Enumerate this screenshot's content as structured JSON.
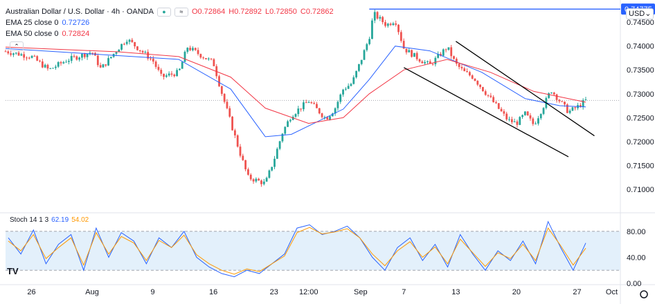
{
  "header": {
    "title": "Australian Dollar / U.S. Dollar · 4h · OANDA",
    "open": "O0.72864",
    "high": "H0.72892",
    "low": "L0.72850",
    "close": "C0.72862",
    "indicators": [
      {
        "label": "EMA 25 close 0",
        "value": "0.72726",
        "color": "#2962ff"
      },
      {
        "label": "EMA 50 close 0",
        "value": "0.72824",
        "color": "#f23645"
      }
    ]
  },
  "currency": "USD",
  "tv_logo": "TV",
  "stoch": {
    "label": "Stoch 14 1 3",
    "k": "62.19",
    "d": "54.02",
    "k_color": "#2962ff",
    "d_color": "#ff9800"
  },
  "colors": {
    "up": "#26a69a",
    "down": "#ef5350",
    "ema25": "#2962ff",
    "ema50": "#f23645",
    "band": "#e3f0fb"
  },
  "chart_data": [
    {
      "type": "candlestick",
      "title": "Australian Dollar / U.S. Dollar · 4h · OANDA",
      "ylim": [
        0.7055,
        0.7485
      ],
      "y_ticks": [
        "0.74500",
        "0.74000",
        "0.73500",
        "0.73000",
        "0.72500",
        "0.72000",
        "0.71500",
        "0.71000"
      ],
      "x_ticks": [
        "26",
        "Aug",
        "9",
        "16",
        "23",
        "12:00",
        "Sep",
        "7",
        "13",
        "20",
        "27",
        "Oct"
      ],
      "price_label": "0.74775",
      "horizontal_line": 0.74775,
      "current_price": 0.72862,
      "trendlines": [
        {
          "from": [
            "2021-09-13",
            0.741
          ],
          "to": [
            "2021-09-29",
            0.7212
          ]
        },
        {
          "from": [
            "2021-09-07",
            0.7355
          ],
          "to": [
            "2021-09-26",
            0.7168
          ]
        }
      ],
      "close_path": [
        [
          "2021-07-23",
          0.7389
        ],
        [
          "2021-07-26",
          0.7378
        ],
        [
          "2021-07-28",
          0.735
        ],
        [
          "2021-07-30",
          0.737
        ],
        [
          "2021-08-02",
          0.7388
        ],
        [
          "2021-08-03",
          0.7352
        ],
        [
          "2021-08-05",
          0.7395
        ],
        [
          "2021-08-06",
          0.7415
        ],
        [
          "2021-08-09",
          0.737
        ],
        [
          "2021-08-10",
          0.7335
        ],
        [
          "2021-08-12",
          0.7345
        ],
        [
          "2021-08-13",
          0.7398
        ],
        [
          "2021-08-16",
          0.7365
        ],
        [
          "2021-08-17",
          0.73
        ],
        [
          "2021-08-18",
          0.724
        ],
        [
          "2021-08-19",
          0.718
        ],
        [
          "2021-08-20",
          0.7125
        ],
        [
          "2021-08-22",
          0.7112
        ],
        [
          "2021-08-23",
          0.7162
        ],
        [
          "2021-08-24",
          0.722
        ],
        [
          "2021-08-25",
          0.7255
        ],
        [
          "2021-08-27",
          0.7285
        ],
        [
          "2021-08-29",
          0.7248
        ],
        [
          "2021-08-30",
          0.7268
        ],
        [
          "2021-08-31",
          0.731
        ],
        [
          "2021-09-01",
          0.7322
        ],
        [
          "2021-09-02",
          0.7368
        ],
        [
          "2021-09-03",
          0.7418
        ],
        [
          "2021-09-03T12:00",
          0.7468
        ],
        [
          "2021-09-05",
          0.7444
        ],
        [
          "2021-09-06",
          0.7455
        ],
        [
          "2021-09-07",
          0.7395
        ],
        [
          "2021-09-08",
          0.7382
        ],
        [
          "2021-09-09",
          0.737
        ],
        [
          "2021-09-10",
          0.736
        ],
        [
          "2021-09-12",
          0.7398
        ],
        [
          "2021-09-13",
          0.7362
        ],
        [
          "2021-09-14",
          0.7345
        ],
        [
          "2021-09-15",
          0.7335
        ],
        [
          "2021-09-16",
          0.7312
        ],
        [
          "2021-09-17",
          0.729
        ],
        [
          "2021-09-19",
          0.7245
        ],
        [
          "2021-09-20",
          0.7238
        ],
        [
          "2021-09-21",
          0.7258
        ],
        [
          "2021-09-22",
          0.7235
        ],
        [
          "2021-09-23",
          0.727
        ],
        [
          "2021-09-24",
          0.7308
        ],
        [
          "2021-09-25",
          0.7285
        ],
        [
          "2021-09-26",
          0.7262
        ],
        [
          "2021-09-27",
          0.7272
        ],
        [
          "2021-09-28",
          0.7286
        ]
      ],
      "ema25_path": [
        [
          "2021-07-23",
          0.7395
        ],
        [
          "2021-08-05",
          0.738
        ],
        [
          "2021-08-12",
          0.7372
        ],
        [
          "2021-08-18",
          0.731
        ],
        [
          "2021-08-22",
          0.721
        ],
        [
          "2021-08-25",
          0.7215
        ],
        [
          "2021-08-31",
          0.7268
        ],
        [
          "2021-09-03",
          0.733
        ],
        [
          "2021-09-06",
          0.74
        ],
        [
          "2021-09-10",
          0.739
        ],
        [
          "2021-09-16",
          0.7345
        ],
        [
          "2021-09-21",
          0.729
        ],
        [
          "2021-09-25",
          0.7275
        ],
        [
          "2021-09-28",
          0.72726
        ]
      ],
      "ema50_path": [
        [
          "2021-07-23",
          0.7398
        ],
        [
          "2021-08-05",
          0.7388
        ],
        [
          "2021-08-12",
          0.7378
        ],
        [
          "2021-08-18",
          0.7335
        ],
        [
          "2021-08-22",
          0.727
        ],
        [
          "2021-08-27",
          0.7238
        ],
        [
          "2021-08-31",
          0.725
        ],
        [
          "2021-09-03",
          0.73
        ],
        [
          "2021-09-07",
          0.735
        ],
        [
          "2021-09-12",
          0.7372
        ],
        [
          "2021-09-17",
          0.7345
        ],
        [
          "2021-09-22",
          0.7305
        ],
        [
          "2021-09-26",
          0.729
        ],
        [
          "2021-09-28",
          0.72824
        ]
      ]
    },
    {
      "type": "line",
      "title": "Stoch 14 1 3",
      "ylim": [
        0,
        100
      ],
      "y_ticks": [
        "80.00",
        "40.00",
        "0.00"
      ],
      "band": [
        20,
        80
      ],
      "series": [
        {
          "name": "62.19",
          "values": [
            70,
            45,
            82,
            30,
            60,
            75,
            20,
            85,
            40,
            78,
            65,
            30,
            70,
            55,
            80,
            40,
            25,
            15,
            10,
            20,
            15,
            30,
            45,
            85,
            90,
            75,
            80,
            88,
            70,
            40,
            20,
            55,
            70,
            35,
            60,
            25,
            75,
            45,
            20,
            50,
            35,
            65,
            30,
            95,
            55,
            20,
            62
          ]
        },
        {
          "name": "54.02",
          "values": [
            65,
            50,
            75,
            38,
            55,
            70,
            28,
            78,
            45,
            72,
            62,
            35,
            66,
            55,
            74,
            44,
            30,
            20,
            14,
            22,
            18,
            30,
            42,
            78,
            86,
            76,
            79,
            84,
            70,
            45,
            27,
            50,
            64,
            40,
            56,
            30,
            68,
            47,
            26,
            47,
            38,
            60,
            35,
            85,
            58,
            28,
            54
          ]
        }
      ]
    }
  ]
}
